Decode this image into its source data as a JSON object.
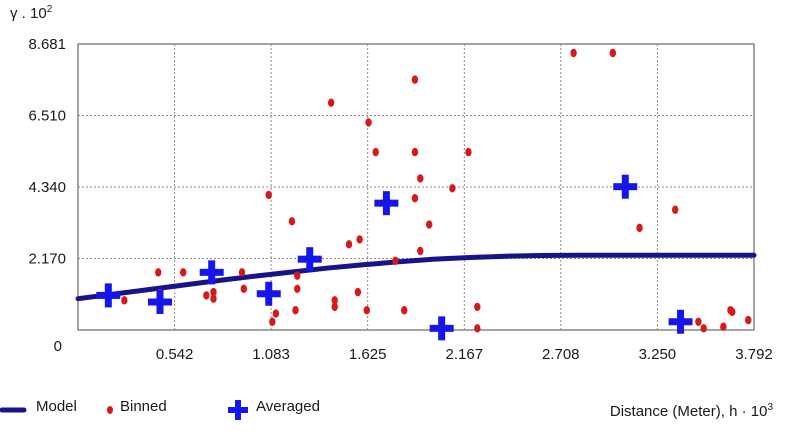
{
  "chart_data": {
    "type": "scatter",
    "ylabel_main": "γ . 10",
    "ylabel_exp": "2",
    "xlabel_main": "Distance (Meter), h · 10",
    "xlabel_exp": "3",
    "xlim": [
      0,
      3.792
    ],
    "ylim": [
      0,
      8.681
    ],
    "x_ticks": [
      0.542,
      1.083,
      1.625,
      2.167,
      2.708,
      3.25,
      3.792
    ],
    "x_tick_labels": [
      "0.542",
      "1.083",
      "1.625",
      "2.167",
      "2.708",
      "3.250",
      "3.792"
    ],
    "y_ticks": [
      0,
      2.17,
      4.34,
      6.51,
      8.681
    ],
    "y_tick_labels": [
      "0",
      "2.170",
      "4.340",
      "6.510",
      "8.681"
    ],
    "grid": true,
    "series": [
      {
        "name": "Model",
        "kind": "line",
        "color": "#17148a",
        "x": [
          0,
          0.2,
          0.4,
          0.6,
          0.8,
          1.0,
          1.2,
          1.4,
          1.6,
          1.8,
          2.0,
          2.2,
          2.4,
          2.6,
          2.8,
          3.0,
          3.2,
          3.4,
          3.6,
          3.792
        ],
        "y": [
          0.95,
          1.09,
          1.23,
          1.37,
          1.51,
          1.64,
          1.76,
          1.88,
          1.98,
          2.07,
          2.15,
          2.2,
          2.24,
          2.26,
          2.27,
          2.27,
          2.27,
          2.27,
          2.27,
          2.27
        ]
      },
      {
        "name": "Binned",
        "kind": "points",
        "color": "#d41a1a",
        "x": [
          0.26,
          0.45,
          0.46,
          0.59,
          0.72,
          0.76,
          0.76,
          0.92,
          0.93,
          1.07,
          1.09,
          1.11,
          1.2,
          1.23,
          1.23,
          1.22,
          1.42,
          1.44,
          1.44,
          1.52,
          1.57,
          1.58,
          1.62,
          1.63,
          1.67,
          1.78,
          1.83,
          1.89,
          1.89,
          1.89,
          1.92,
          1.92,
          1.97,
          2.1,
          2.19,
          2.24,
          2.24,
          2.78,
          3.0,
          3.15,
          3.35,
          3.48,
          3.51,
          3.62,
          3.66,
          3.67,
          3.76
        ],
        "y": [
          0.9,
          1.75,
          1.12,
          1.75,
          1.05,
          1.15,
          0.95,
          1.75,
          1.25,
          4.1,
          0.25,
          0.5,
          3.3,
          1.65,
          1.25,
          0.6,
          6.9,
          0.9,
          0.7,
          2.6,
          1.15,
          2.75,
          0.6,
          6.3,
          5.4,
          2.1,
          0.6,
          7.6,
          5.4,
          4.0,
          4.6,
          2.4,
          3.2,
          4.3,
          5.4,
          0.7,
          0.05,
          8.68,
          8.68,
          3.1,
          3.65,
          0.25,
          0.05,
          0.1,
          0.6,
          0.55,
          0.3
        ]
      },
      {
        "name": "Averaged",
        "kind": "crosses",
        "color": "#1616e8",
        "x": [
          0.17,
          0.46,
          0.75,
          1.07,
          1.3,
          1.73,
          2.04,
          3.07,
          3.38
        ],
        "y": [
          1.05,
          0.85,
          1.75,
          1.1,
          2.15,
          3.85,
          0.05,
          4.35,
          0.25
        ]
      }
    ]
  }
}
